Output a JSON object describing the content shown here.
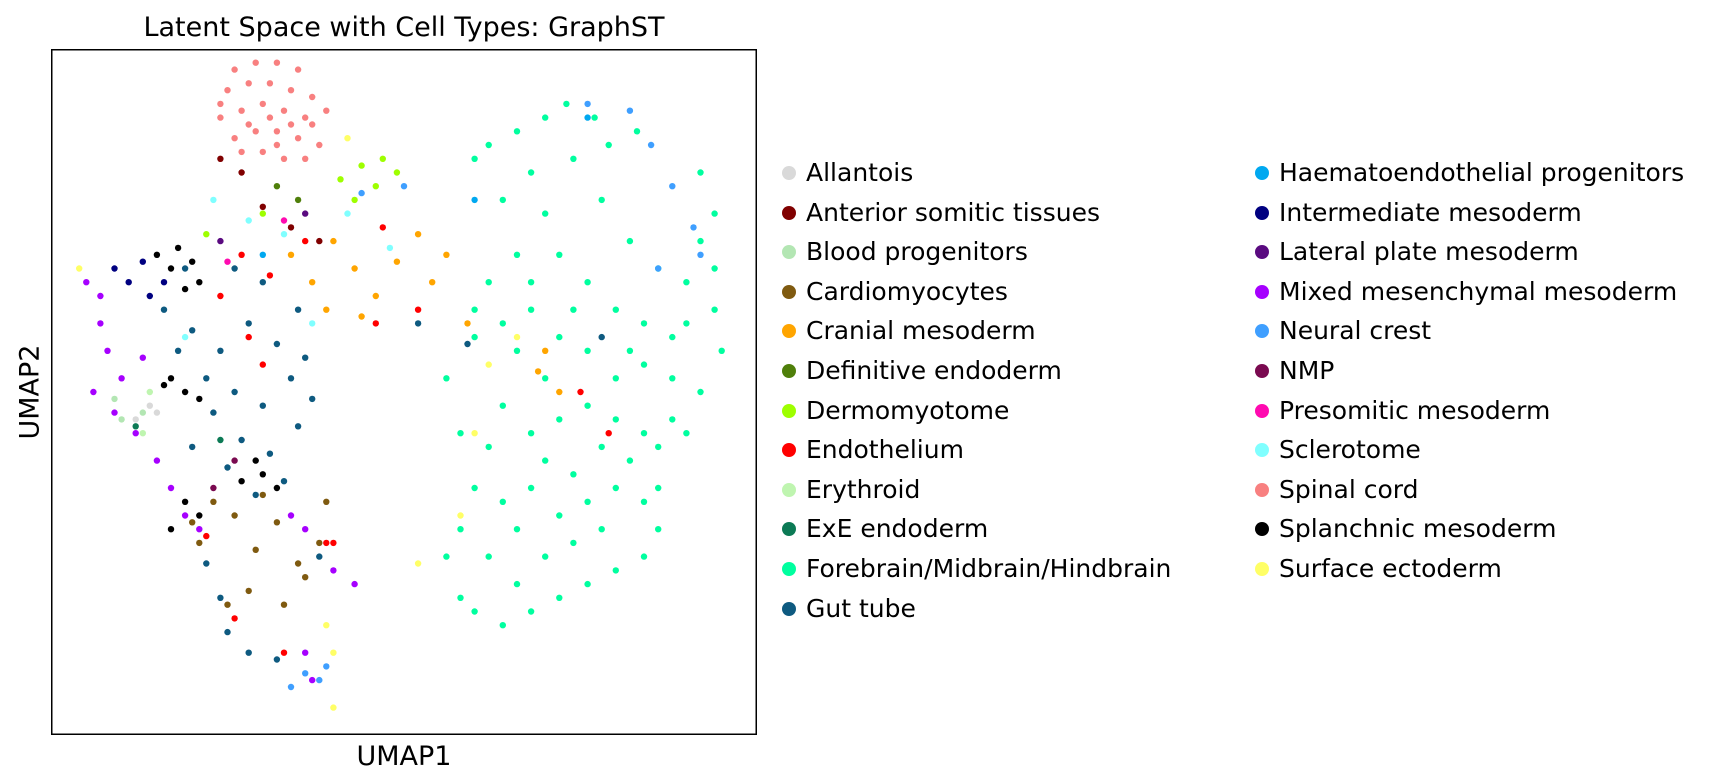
{
  "chart_data": {
    "type": "scatter",
    "title": "Latent Space with Cell Types: GraphST",
    "xlabel": "UMAP1",
    "ylabel": "UMAP2",
    "xlim": [
      0,
      100
    ],
    "ylim": [
      0,
      100
    ],
    "x_ticks": "none",
    "y_ticks": "none",
    "grid": false,
    "legend_position": "right, two columns",
    "series": [
      {
        "name": "Allantois",
        "color": "#d9d9d9",
        "points": [
          [
            12,
            46
          ],
          [
            14,
            48
          ],
          [
            15,
            47
          ]
        ]
      },
      {
        "name": "Anterior somitic tissues",
        "color": "#800000",
        "points": [
          [
            24,
            84
          ],
          [
            27,
            82
          ],
          [
            30,
            77
          ],
          [
            34,
            74
          ],
          [
            38,
            72
          ]
        ]
      },
      {
        "name": "Blood progenitors",
        "color": "#b3e6b3",
        "points": [
          [
            9,
            49
          ],
          [
            10,
            46
          ],
          [
            13,
            47
          ]
        ]
      },
      {
        "name": "Cardiomyocytes",
        "color": "#7f5a10",
        "points": [
          [
            20,
            31
          ],
          [
            23,
            34
          ],
          [
            26,
            32
          ],
          [
            29,
            27
          ],
          [
            32,
            31
          ],
          [
            35,
            25
          ],
          [
            38,
            28
          ],
          [
            39,
            34
          ],
          [
            28,
            21
          ],
          [
            25,
            19
          ],
          [
            33,
            19
          ],
          [
            36,
            23
          ],
          [
            21,
            28
          ],
          [
            30,
            35
          ]
        ]
      },
      {
        "name": "Cranial mesoderm",
        "color": "#ffa500",
        "points": [
          [
            34,
            70
          ],
          [
            37,
            66
          ],
          [
            40,
            72
          ],
          [
            43,
            68
          ],
          [
            46,
            64
          ],
          [
            49,
            69
          ],
          [
            52,
            73
          ],
          [
            54,
            66
          ],
          [
            44,
            61
          ],
          [
            39,
            62
          ],
          [
            56,
            70
          ],
          [
            69,
            53
          ],
          [
            72,
            50
          ],
          [
            70,
            56
          ],
          [
            59,
            60
          ]
        ]
      },
      {
        "name": "Definitive endoderm",
        "color": "#4f7f0a",
        "points": [
          [
            32,
            80
          ],
          [
            35,
            78
          ]
        ]
      },
      {
        "name": "Dermomyotome",
        "color": "#9eff00",
        "points": [
          [
            41,
            81
          ],
          [
            44,
            83
          ],
          [
            46,
            80
          ],
          [
            47,
            84
          ],
          [
            43,
            78
          ],
          [
            30,
            76
          ],
          [
            49,
            82
          ],
          [
            22,
            73
          ]
        ]
      },
      {
        "name": "Endothelium",
        "color": "#ff0000",
        "points": [
          [
            27,
            70
          ],
          [
            31,
            67
          ],
          [
            36,
            72
          ],
          [
            46,
            60
          ],
          [
            52,
            62
          ],
          [
            24,
            64
          ],
          [
            28,
            58
          ],
          [
            30,
            54
          ],
          [
            39,
            28
          ],
          [
            40,
            28
          ],
          [
            22,
            29
          ],
          [
            26,
            17
          ],
          [
            33,
            12
          ],
          [
            47,
            74
          ],
          [
            79,
            44
          ],
          [
            75,
            50
          ]
        ]
      },
      {
        "name": "Erythroid",
        "color": "#bff5b0",
        "points": [
          [
            13,
            44
          ],
          [
            14,
            50
          ]
        ]
      },
      {
        "name": "ExE endoderm",
        "color": "#0c7a55",
        "points": [
          [
            12,
            45
          ],
          [
            24,
            43
          ]
        ]
      },
      {
        "name": "Forebrain/Midbrain/Hindbrain",
        "color": "#00ff9f",
        "points": [
          [
            62,
            86
          ],
          [
            66,
            88
          ],
          [
            70,
            90
          ],
          [
            73,
            92
          ],
          [
            77,
            90
          ],
          [
            68,
            82
          ],
          [
            64,
            78
          ],
          [
            60,
            84
          ],
          [
            74,
            84
          ],
          [
            79,
            86
          ],
          [
            83,
            88
          ],
          [
            70,
            76
          ],
          [
            66,
            70
          ],
          [
            62,
            66
          ],
          [
            72,
            70
          ],
          [
            76,
            66
          ],
          [
            80,
            62
          ],
          [
            84,
            60
          ],
          [
            88,
            58
          ],
          [
            90,
            66
          ],
          [
            92,
            72
          ],
          [
            94,
            76
          ],
          [
            92,
            82
          ],
          [
            86,
            68
          ],
          [
            82,
            72
          ],
          [
            78,
            78
          ],
          [
            94,
            62
          ],
          [
            95,
            56
          ],
          [
            92,
            50
          ],
          [
            88,
            46
          ],
          [
            84,
            44
          ],
          [
            80,
            46
          ],
          [
            76,
            48
          ],
          [
            72,
            46
          ],
          [
            68,
            44
          ],
          [
            64,
            48
          ],
          [
            62,
            42
          ],
          [
            60,
            36
          ],
          [
            58,
            30
          ],
          [
            56,
            26
          ],
          [
            58,
            20
          ],
          [
            60,
            18
          ],
          [
            64,
            16
          ],
          [
            68,
            18
          ],
          [
            72,
            20
          ],
          [
            76,
            22
          ],
          [
            80,
            24
          ],
          [
            84,
            26
          ],
          [
            86,
            30
          ],
          [
            84,
            34
          ],
          [
            80,
            36
          ],
          [
            76,
            34
          ],
          [
            72,
            32
          ],
          [
            68,
            36
          ],
          [
            66,
            30
          ],
          [
            70,
            26
          ],
          [
            74,
            28
          ],
          [
            78,
            30
          ],
          [
            82,
            40
          ],
          [
            86,
            42
          ],
          [
            90,
            44
          ],
          [
            88,
            52
          ],
          [
            84,
            54
          ],
          [
            80,
            52
          ],
          [
            64,
            60
          ],
          [
            60,
            58
          ],
          [
            68,
            62
          ],
          [
            72,
            58
          ],
          [
            56,
            52
          ],
          [
            58,
            44
          ],
          [
            62,
            26
          ],
          [
            66,
            22
          ],
          [
            70,
            40
          ],
          [
            74,
            38
          ],
          [
            64,
            34
          ],
          [
            60,
            62
          ],
          [
            66,
            56
          ],
          [
            76,
            56
          ],
          [
            86,
            36
          ],
          [
            78,
            42
          ],
          [
            70,
            52
          ],
          [
            94,
            68
          ],
          [
            90,
            60
          ],
          [
            82,
            56
          ],
          [
            74,
            62
          ],
          [
            68,
            66
          ]
        ]
      },
      {
        "name": "Gut tube",
        "color": "#0e5a80",
        "points": [
          [
            16,
            62
          ],
          [
            20,
            59
          ],
          [
            24,
            56
          ],
          [
            28,
            60
          ],
          [
            32,
            57
          ],
          [
            34,
            52
          ],
          [
            30,
            48
          ],
          [
            26,
            50
          ],
          [
            22,
            52
          ],
          [
            18,
            56
          ],
          [
            23,
            47
          ],
          [
            27,
            43
          ],
          [
            31,
            41
          ],
          [
            35,
            45
          ],
          [
            37,
            49
          ],
          [
            33,
            37
          ],
          [
            29,
            35
          ],
          [
            25,
            39
          ],
          [
            30,
            66
          ],
          [
            26,
            68
          ],
          [
            35,
            62
          ],
          [
            19,
            68
          ],
          [
            20,
            42
          ],
          [
            22,
            25
          ],
          [
            25,
            15
          ],
          [
            28,
            12
          ],
          [
            32,
            11
          ],
          [
            24,
            20
          ],
          [
            38,
            26
          ],
          [
            36,
            55
          ],
          [
            52,
            60
          ],
          [
            59,
            57
          ],
          [
            78,
            58
          ]
        ]
      },
      {
        "name": "Haematoendothelial progenitors",
        "color": "#00a8f0",
        "points": [
          [
            60,
            78
          ],
          [
            76,
            90
          ],
          [
            30,
            70
          ]
        ]
      },
      {
        "name": "Intermediate mesoderm",
        "color": "#000080",
        "points": [
          [
            9,
            68
          ],
          [
            11,
            66
          ],
          [
            13,
            69
          ],
          [
            14,
            64
          ],
          [
            16,
            66
          ]
        ]
      },
      {
        "name": "Lateral plate mesoderm",
        "color": "#5a0a80",
        "points": [
          [
            24,
            72
          ],
          [
            36,
            76
          ]
        ]
      },
      {
        "name": "Mixed mesenchymal mesoderm",
        "color": "#a600ff",
        "points": [
          [
            5,
            66
          ],
          [
            7,
            60
          ],
          [
            8,
            56
          ],
          [
            6,
            50
          ],
          [
            9,
            47
          ],
          [
            12,
            44
          ],
          [
            15,
            40
          ],
          [
            17,
            36
          ],
          [
            19,
            32
          ],
          [
            21,
            30
          ],
          [
            34,
            32
          ],
          [
            36,
            30
          ],
          [
            40,
            24
          ],
          [
            43,
            22
          ],
          [
            36,
            12
          ],
          [
            37,
            8
          ],
          [
            7,
            64
          ],
          [
            10,
            52
          ],
          [
            13,
            55
          ]
        ]
      },
      {
        "name": "Neural crest",
        "color": "#3f9fff",
        "points": [
          [
            76,
            92
          ],
          [
            82,
            91
          ],
          [
            85,
            86
          ],
          [
            88,
            80
          ],
          [
            91,
            74
          ],
          [
            92,
            70
          ],
          [
            86,
            68
          ],
          [
            34,
            7
          ],
          [
            36,
            9
          ],
          [
            38,
            8
          ],
          [
            39,
            10
          ],
          [
            44,
            79
          ],
          [
            50,
            80
          ]
        ]
      },
      {
        "name": "NMP",
        "color": "#7a0a50",
        "points": [
          [
            23,
            36
          ],
          [
            26,
            40
          ]
        ]
      },
      {
        "name": "Presomitic mesoderm",
        "color": "#ff0ab0",
        "points": [
          [
            25,
            69
          ],
          [
            33,
            75
          ]
        ]
      },
      {
        "name": "Sclerotome",
        "color": "#80ffff",
        "points": [
          [
            23,
            78
          ],
          [
            28,
            75
          ],
          [
            33,
            73
          ],
          [
            42,
            76
          ],
          [
            19,
            58
          ],
          [
            37,
            60
          ],
          [
            48,
            71
          ]
        ]
      },
      {
        "name": "Spinal cord",
        "color": "#f88080",
        "points": [
          [
            26,
            97
          ],
          [
            29,
            98
          ],
          [
            32,
            98
          ],
          [
            35,
            97
          ],
          [
            25,
            94
          ],
          [
            28,
            95
          ],
          [
            31,
            95
          ],
          [
            34,
            94
          ],
          [
            37,
            93
          ],
          [
            24,
            90
          ],
          [
            27,
            91
          ],
          [
            30,
            92
          ],
          [
            33,
            91
          ],
          [
            36,
            90
          ],
          [
            39,
            91
          ],
          [
            26,
            87
          ],
          [
            29,
            88
          ],
          [
            32,
            88
          ],
          [
            35,
            87
          ],
          [
            38,
            86
          ],
          [
            30,
            85
          ],
          [
            33,
            84
          ],
          [
            36,
            84
          ],
          [
            24,
            92
          ],
          [
            31,
            90
          ],
          [
            34,
            89
          ],
          [
            28,
            89
          ],
          [
            37,
            89
          ],
          [
            27,
            85
          ],
          [
            32,
            86
          ]
        ]
      },
      {
        "name": "Splanchnic mesoderm",
        "color": "#000000",
        "points": [
          [
            15,
            70
          ],
          [
            17,
            68
          ],
          [
            19,
            65
          ],
          [
            21,
            66
          ],
          [
            18,
            71
          ],
          [
            20,
            69
          ],
          [
            17,
            52
          ],
          [
            19,
            50
          ],
          [
            21,
            49
          ],
          [
            16,
            51
          ],
          [
            27,
            37
          ],
          [
            30,
            38
          ],
          [
            32,
            36
          ],
          [
            29,
            40
          ],
          [
            19,
            34
          ],
          [
            21,
            32
          ],
          [
            17,
            30
          ]
        ]
      },
      {
        "name": "Surface ectoderm",
        "color": "#ffff66",
        "points": [
          [
            4,
            68
          ],
          [
            40,
            4
          ],
          [
            40,
            12
          ],
          [
            39,
            16
          ],
          [
            52,
            25
          ],
          [
            58,
            32
          ],
          [
            60,
            44
          ],
          [
            62,
            54
          ],
          [
            66,
            58
          ],
          [
            42,
            87
          ]
        ]
      }
    ]
  }
}
